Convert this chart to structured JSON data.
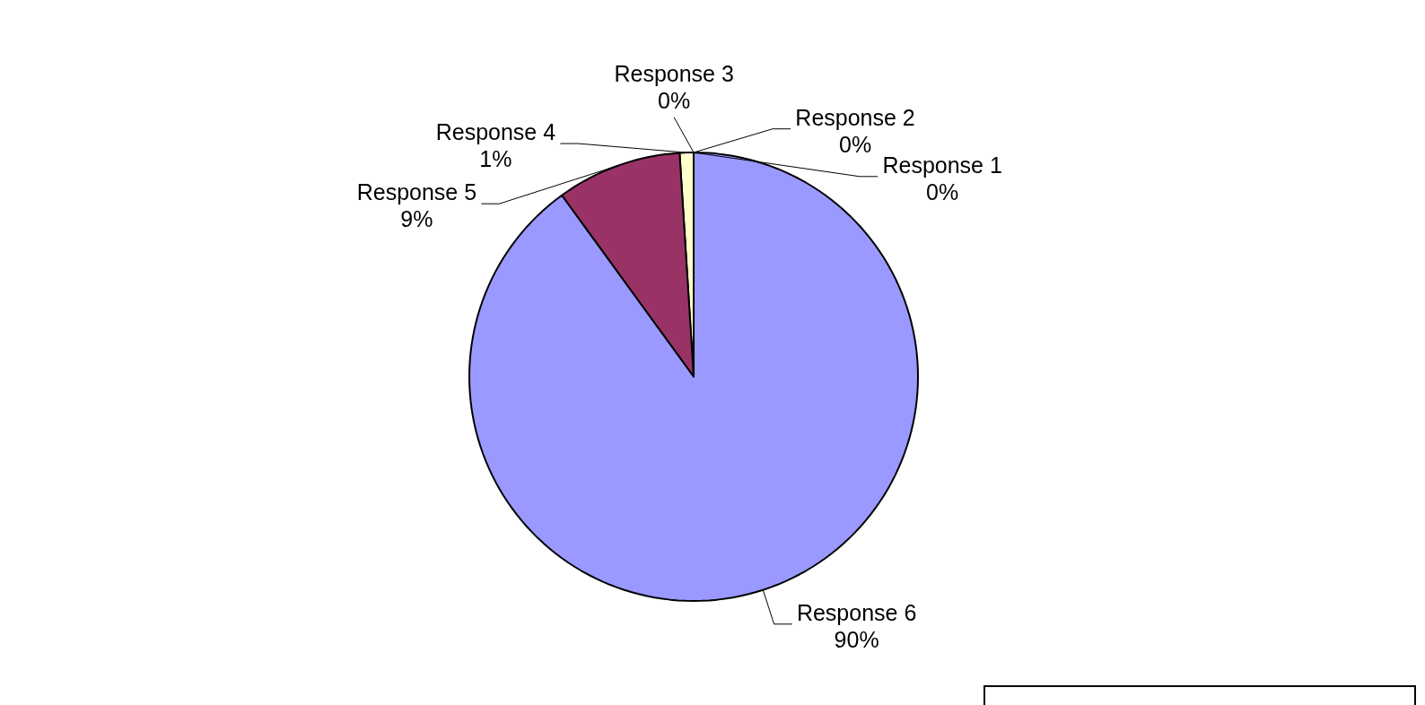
{
  "chart_data": {
    "type": "pie",
    "categories": [
      "Response 1",
      "Response 2",
      "Response 3",
      "Response 4",
      "Response 5",
      "Response 6"
    ],
    "values": [
      0,
      0,
      0,
      1,
      9,
      90
    ],
    "colors": [
      "#ccffff",
      "#660066",
      "#ff8080",
      "#ffffcc",
      "#993366",
      "#9999ff"
    ],
    "value_labels": [
      "0%",
      "0%",
      "0%",
      "1%",
      "9%",
      "90%"
    ]
  }
}
